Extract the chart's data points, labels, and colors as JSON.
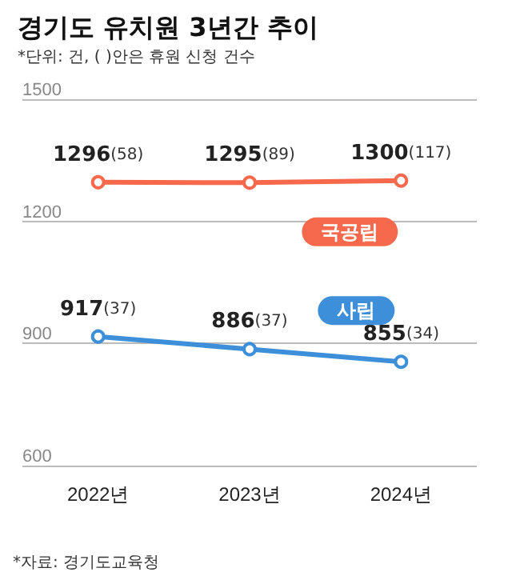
{
  "chart_data": {
    "type": "line",
    "title": "경기도 유치원 3년간 추이",
    "subtitle": "*단위: 건, ( )안은 휴원 신청 건수",
    "categories": [
      "2022년",
      "2023년",
      "2024년"
    ],
    "series": [
      {
        "name": "국공립",
        "color": "#f7694d",
        "values": [
          1296,
          1295,
          1300
        ],
        "value_labels": [
          "1296(58)",
          "1295(89)",
          "1300(117)"
        ]
      },
      {
        "name": "사립",
        "color": "#3d8fd9",
        "values": [
          917,
          886,
          855
        ],
        "value_labels": [
          "917(37)",
          "886(37)",
          "855(34)"
        ]
      }
    ],
    "ylim": [
      600,
      1500
    ],
    "yticks": [
      600,
      900,
      1200,
      1500
    ],
    "grid": "y",
    "legend": false,
    "marker": "circle",
    "line_style": "solid",
    "annotations": [
      "*자료: 경기도교육청"
    ]
  }
}
